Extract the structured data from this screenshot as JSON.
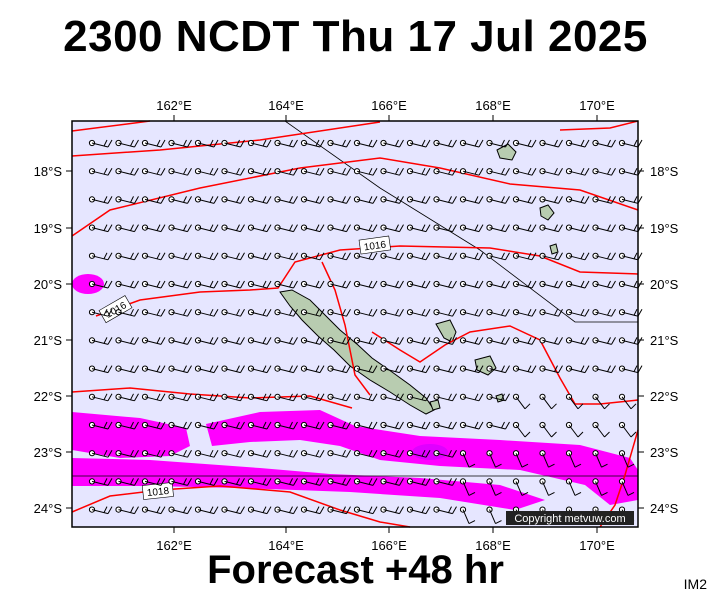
{
  "header": {
    "title": "2300 NCDT Thu 17 Jul 2025"
  },
  "footer": {
    "forecast": "Forecast +48 hr",
    "code": "IM2"
  },
  "map": {
    "lon_ticks": [
      "162°E",
      "164°E",
      "166°E",
      "168°E",
      "170°E"
    ],
    "lat_ticks": [
      "18°S",
      "19°S",
      "20°S",
      "21°S",
      "22°S",
      "23°S",
      "24°S"
    ],
    "isobar_labels": [
      "1016",
      "1016",
      "1018"
    ],
    "copyright": "Copyright metvuw.com",
    "colors": {
      "background": "#e6e6ff",
      "rain": "#ff00ff",
      "isobar": "#ff0000",
      "land": "#b8ccb0"
    }
  }
}
